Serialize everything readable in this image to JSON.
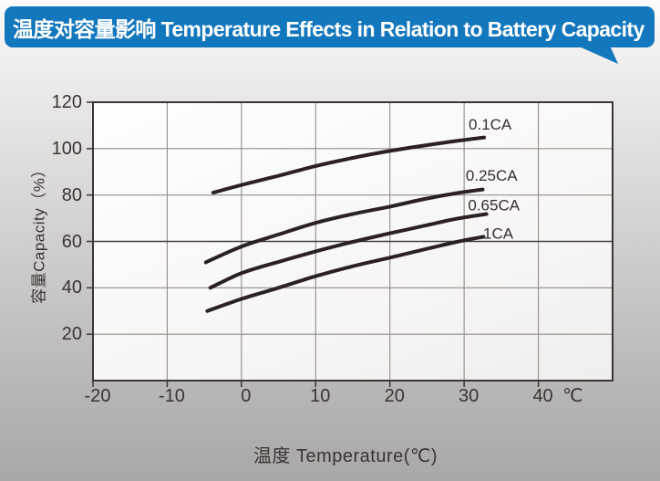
{
  "header": {
    "title": "温度对容量影响 Temperature Effects in Relation to Battery Capacity",
    "bg_color": "#1377bd",
    "text_color": "#ffffff"
  },
  "chart_data": {
    "type": "line",
    "title": "温度对容量影响 Temperature Effects in Relation to Battery Capacity",
    "xlabel": "温度  Temperature(℃)",
    "ylabel": "容量Capacity（%）",
    "x_unit_label": "℃",
    "xlim": [
      -20,
      50
    ],
    "ylim": [
      0,
      120
    ],
    "x_ticks": [
      -20,
      -10,
      0,
      10,
      20,
      30,
      40
    ],
    "y_ticks": [
      20,
      40,
      60,
      80,
      100,
      120
    ],
    "grid": true,
    "legend_position": "inline-right-of-curves",
    "emphasized_gridline_y": 60,
    "grid_color": "#918d8c",
    "emphasized_grid_color": "#45403f",
    "axis_color": "#3b3535",
    "line_color": "#2b2123",
    "series": [
      {
        "name": "0.1CA",
        "points": [
          [
            -3.8,
            81
          ],
          [
            0,
            84.3
          ],
          [
            5,
            88.3
          ],
          [
            10,
            92.5
          ],
          [
            15,
            96
          ],
          [
            20,
            99
          ],
          [
            25,
            101.5
          ],
          [
            29,
            103.3
          ],
          [
            32.7,
            104.8
          ]
        ],
        "label_at": [
          33.5,
          110.5
        ]
      },
      {
        "name": "0.25CA",
        "points": [
          [
            -4.8,
            51
          ],
          [
            0,
            57.8
          ],
          [
            5,
            63
          ],
          [
            10,
            68
          ],
          [
            15,
            71.8
          ],
          [
            20,
            75
          ],
          [
            25,
            78.5
          ],
          [
            29,
            80.8
          ],
          [
            32.5,
            82.4
          ]
        ],
        "label_at": [
          33.7,
          88.5
        ]
      },
      {
        "name": "0.65CA",
        "points": [
          [
            -4.2,
            40
          ],
          [
            0,
            46.3
          ],
          [
            5,
            51.2
          ],
          [
            10,
            55.7
          ],
          [
            15,
            59.8
          ],
          [
            20,
            63.5
          ],
          [
            25,
            67
          ],
          [
            29,
            69.8
          ],
          [
            33,
            71.8
          ]
        ],
        "label_at": [
          34.0,
          75.8
        ]
      },
      {
        "name": "1CA",
        "points": [
          [
            -4.6,
            30
          ],
          [
            0,
            35.2
          ],
          [
            5,
            40
          ],
          [
            10,
            45
          ],
          [
            15,
            49.3
          ],
          [
            20,
            53
          ],
          [
            25,
            56.8
          ],
          [
            29,
            59.8
          ],
          [
            32.6,
            62
          ]
        ],
        "label_at": [
          34.6,
          63.6
        ]
      }
    ]
  }
}
